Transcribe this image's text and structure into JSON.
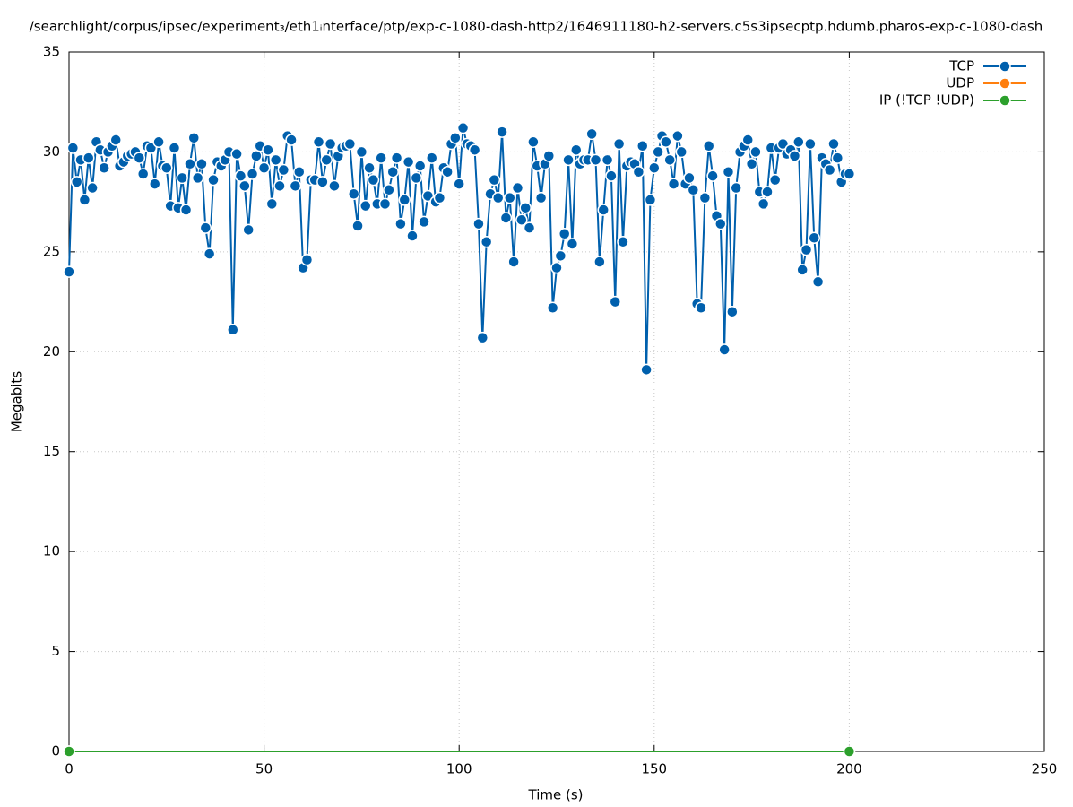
{
  "chart_data": {
    "type": "line",
    "title": "/searchlight/corpus/ipsec/experiment₃/eth1ᵢnterface/ptp/exp-c-1080-dash-http2/1646911180-h2-servers.c5s3ipsecptp.hdumb.pharos-exp-c-1080-dash",
    "xlabel": "Time (s)",
    "ylabel": "Megabits",
    "xlim": [
      0,
      250
    ],
    "xticks": [
      0,
      50,
      100,
      150,
      200,
      250
    ],
    "ylim": [
      0,
      35
    ],
    "yticks": [
      0,
      5,
      10,
      15,
      20,
      25,
      30,
      35
    ],
    "grid": true,
    "legend": "top-right",
    "series": [
      {
        "name": "UDP",
        "color": "#ff7f0e",
        "x": [
          0,
          200
        ],
        "values": [
          0,
          0
        ]
      },
      {
        "name": "IP (!TCP  !UDP)",
        "color": "#2ca02c",
        "x": [
          0,
          200
        ],
        "values": [
          0,
          0
        ]
      },
      {
        "name": "TCP",
        "color": "#0060ad",
        "x": [
          0,
          1,
          2,
          3,
          4,
          5,
          6,
          7,
          8,
          9,
          10,
          11,
          12,
          13,
          14,
          15,
          16,
          17,
          18,
          19,
          20,
          21,
          22,
          23,
          24,
          25,
          26,
          27,
          28,
          29,
          30,
          31,
          32,
          33,
          34,
          35,
          36,
          37,
          38,
          39,
          40,
          41,
          42,
          43,
          44,
          45,
          46,
          47,
          48,
          49,
          50,
          51,
          52,
          53,
          54,
          55,
          56,
          57,
          58,
          59,
          60,
          61,
          62,
          63,
          64,
          65,
          66,
          67,
          68,
          69,
          70,
          71,
          72,
          73,
          74,
          75,
          76,
          77,
          78,
          79,
          80,
          81,
          82,
          83,
          84,
          85,
          86,
          87,
          88,
          89,
          90,
          91,
          92,
          93,
          94,
          95,
          96,
          97,
          98,
          99,
          100,
          101,
          102,
          103,
          104,
          105,
          106,
          107,
          108,
          109,
          110,
          111,
          112,
          113,
          114,
          115,
          116,
          117,
          118,
          119,
          120,
          121,
          122,
          123,
          124,
          125,
          126,
          127,
          128,
          129,
          130,
          131,
          132,
          133,
          134,
          135,
          136,
          137,
          138,
          139,
          140,
          141,
          142,
          143,
          144,
          145,
          146,
          147,
          148,
          149,
          150,
          151,
          152,
          153,
          154,
          155,
          156,
          157,
          158,
          159,
          160,
          161,
          162,
          163,
          164,
          165,
          166,
          167,
          168,
          169,
          170,
          171,
          172,
          173,
          174,
          175,
          176,
          177,
          178,
          179,
          180,
          181,
          182,
          183,
          184,
          185,
          186,
          187,
          188,
          189,
          190,
          191,
          192,
          193,
          194,
          195,
          196,
          197,
          198,
          199,
          200
        ],
        "values": [
          24.0,
          30.2,
          28.5,
          29.6,
          27.6,
          29.7,
          28.2,
          30.5,
          30.1,
          29.2,
          30.0,
          30.3,
          30.6,
          29.3,
          29.5,
          29.8,
          29.9,
          30.0,
          29.7,
          28.9,
          30.3,
          30.2,
          28.4,
          30.5,
          29.3,
          29.2,
          27.3,
          30.2,
          27.2,
          28.7,
          27.1,
          29.4,
          30.7,
          28.7,
          29.4,
          26.2,
          24.9,
          28.6,
          29.5,
          29.3,
          29.6,
          30.0,
          21.1,
          29.9,
          28.8,
          28.3,
          26.1,
          28.9,
          29.8,
          30.3,
          29.2,
          30.1,
          27.4,
          29.6,
          28.3,
          29.1,
          30.8,
          30.6,
          28.3,
          29.0,
          24.2,
          24.6,
          28.6,
          28.6,
          30.5,
          28.5,
          29.6,
          30.4,
          28.3,
          29.8,
          30.2,
          30.3,
          30.4,
          27.9,
          26.3,
          30.0,
          27.3,
          29.2,
          28.6,
          27.4,
          29.7,
          27.4,
          28.1,
          29.0,
          29.7,
          26.4,
          27.6,
          29.5,
          25.8,
          28.7,
          29.3,
          26.5,
          27.8,
          29.7,
          27.5,
          27.7,
          29.2,
          29.0,
          30.4,
          30.7,
          28.4,
          31.2,
          30.4,
          30.3,
          30.1,
          26.4,
          20.7,
          25.5,
          27.9,
          28.6,
          27.7,
          31.0,
          26.7,
          27.7,
          24.5,
          28.2,
          26.6,
          27.2,
          26.2,
          30.5,
          29.3,
          27.7,
          29.4,
          29.8,
          22.2,
          24.2,
          24.8,
          25.9,
          29.6,
          25.4,
          30.1,
          29.4,
          29.6,
          29.6,
          30.9,
          29.6,
          24.5,
          27.1,
          29.6,
          28.8,
          22.5,
          30.4,
          25.5,
          29.3,
          29.5,
          29.4,
          29.0,
          30.3,
          19.1,
          27.6,
          29.2,
          30.0,
          30.8,
          30.5,
          29.6,
          28.4,
          30.8,
          30.0,
          28.4,
          28.7,
          28.1,
          22.4,
          22.2,
          27.7,
          30.3,
          28.8,
          26.8,
          26.4,
          20.1,
          29.0,
          22.0,
          28.2,
          30.0,
          30.3,
          30.6,
          29.4,
          30.0,
          28.0,
          27.4,
          28.0,
          30.2,
          28.6,
          30.2,
          30.4,
          29.9,
          30.1,
          29.8,
          30.5,
          24.1,
          25.1,
          30.4,
          25.7,
          23.5,
          29.7,
          29.4,
          29.1,
          30.4,
          29.7,
          28.5,
          28.9,
          28.9
        ]
      }
    ]
  }
}
